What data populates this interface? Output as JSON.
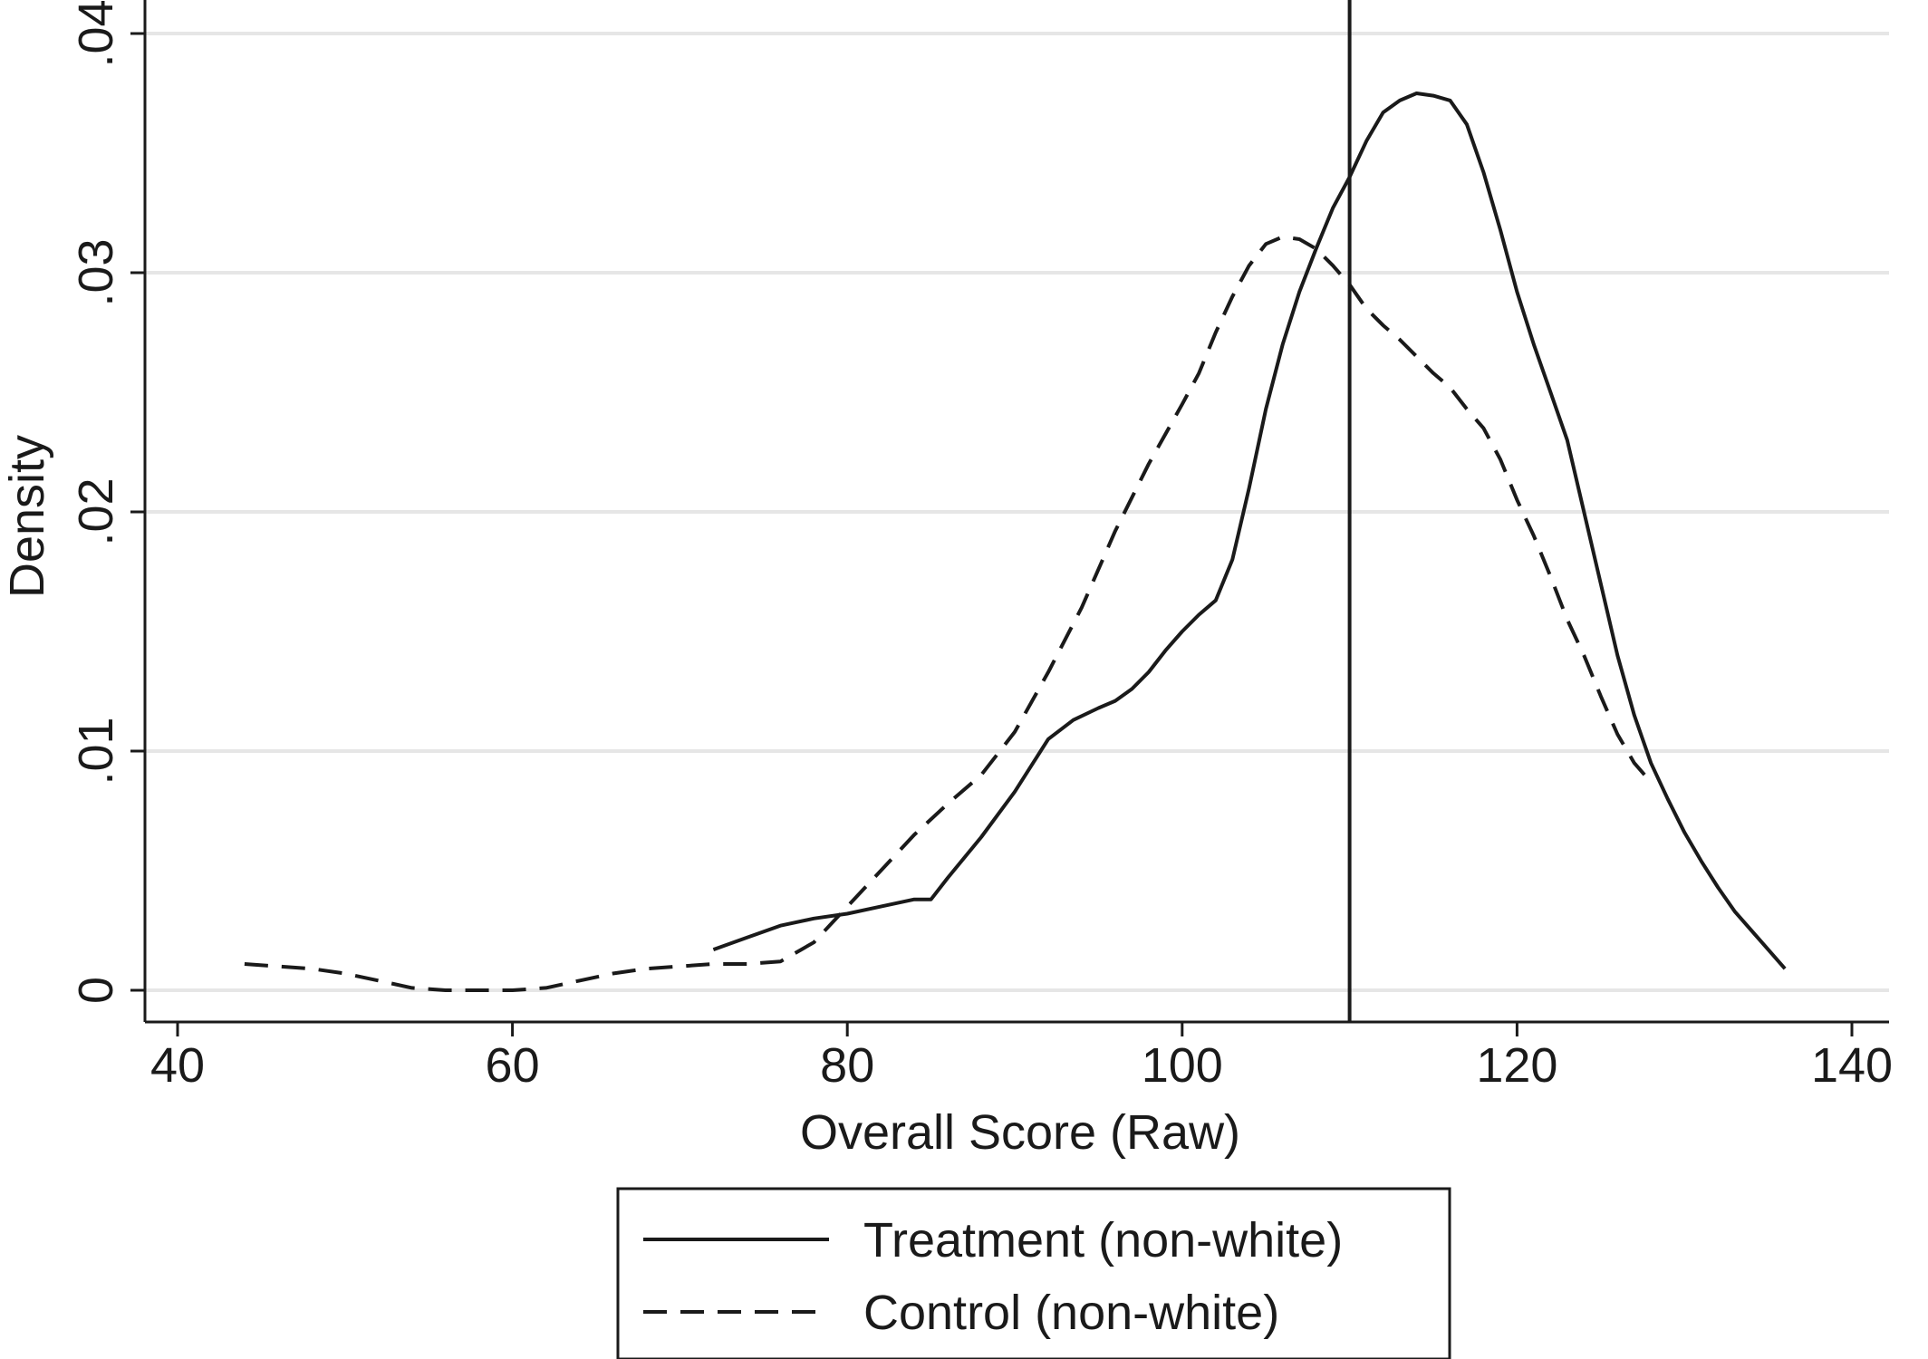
{
  "chart_data": {
    "type": "line",
    "title": "",
    "xlabel": "Overall Score (Raw)",
    "ylabel": "Density",
    "xlim": [
      40,
      140
    ],
    "ylim": [
      0,
      0.04
    ],
    "x_ticks": [
      40,
      60,
      80,
      100,
      120,
      140
    ],
    "x_tick_labels": [
      "40",
      "60",
      "80",
      "100",
      "120",
      "140"
    ],
    "y_ticks": [
      0,
      0.01,
      0.02,
      0.03,
      0.04
    ],
    "y_tick_labels": [
      "0",
      ".01",
      ".02",
      ".03",
      ".04"
    ],
    "grid": "horizontal",
    "legend_position": "bottom",
    "reference_line_x": 110,
    "series": [
      {
        "name": "Treatment (non-white)",
        "style": "solid",
        "color": "#1a1a1a",
        "x": [
          72,
          74,
          76,
          78,
          80,
          82,
          84,
          85,
          86,
          88,
          90,
          92,
          93.5,
          95,
          96,
          97,
          98,
          99,
          100,
          101,
          102,
          103,
          104,
          105,
          106,
          107,
          108,
          109,
          110,
          111,
          112,
          113,
          114,
          115,
          116,
          117,
          118,
          119,
          120,
          121,
          122,
          123,
          124,
          125,
          126,
          127,
          128,
          129,
          130,
          131,
          132,
          133,
          134,
          135,
          136
        ],
        "y": [
          0.0017,
          0.0022,
          0.0027,
          0.003,
          0.0032,
          0.0035,
          0.0038,
          0.0038,
          0.0047,
          0.0064,
          0.0083,
          0.0105,
          0.0113,
          0.0118,
          0.0121,
          0.0126,
          0.0133,
          0.0142,
          0.015,
          0.0157,
          0.0163,
          0.018,
          0.021,
          0.0243,
          0.027,
          0.0292,
          0.031,
          0.0327,
          0.034,
          0.0355,
          0.0367,
          0.0372,
          0.0375,
          0.0374,
          0.0372,
          0.0362,
          0.0342,
          0.0318,
          0.0292,
          0.027,
          0.025,
          0.023,
          0.02,
          0.017,
          0.014,
          0.0115,
          0.0095,
          0.008,
          0.0066,
          0.0054,
          0.0043,
          0.0033,
          0.0025,
          0.0017,
          0.0009
        ]
      },
      {
        "name": "Control (non-white)",
        "style": "dashed",
        "color": "#1a1a1a",
        "x": [
          44,
          46,
          48,
          50,
          52,
          54,
          56,
          58,
          60,
          62,
          64,
          66,
          68,
          70,
          72,
          74,
          76,
          78,
          80,
          82,
          84,
          86,
          88,
          90,
          92,
          94,
          96,
          98,
          100,
          101,
          102,
          103,
          104,
          105,
          106,
          107,
          108,
          109,
          110,
          111,
          112,
          113,
          114,
          115,
          116,
          117,
          118,
          119,
          120,
          121,
          122,
          123,
          124,
          125,
          126,
          127,
          128
        ],
        "y": [
          0.0011,
          0.001,
          0.0009,
          0.0007,
          0.0004,
          0.0001,
          0.0,
          0.0,
          0.0,
          0.0001,
          0.0004,
          0.0007,
          0.0009,
          0.001,
          0.0011,
          0.0011,
          0.0012,
          0.002,
          0.0035,
          0.005,
          0.0065,
          0.0078,
          0.009,
          0.0108,
          0.0133,
          0.016,
          0.0192,
          0.022,
          0.0245,
          0.0258,
          0.0275,
          0.029,
          0.0303,
          0.0312,
          0.0315,
          0.0314,
          0.031,
          0.0303,
          0.0295,
          0.0285,
          0.0278,
          0.0272,
          0.0265,
          0.0258,
          0.0252,
          0.0243,
          0.0235,
          0.0222,
          0.0205,
          0.019,
          0.0173,
          0.0155,
          0.014,
          0.0123,
          0.0107,
          0.0095,
          0.0087
        ]
      }
    ]
  }
}
